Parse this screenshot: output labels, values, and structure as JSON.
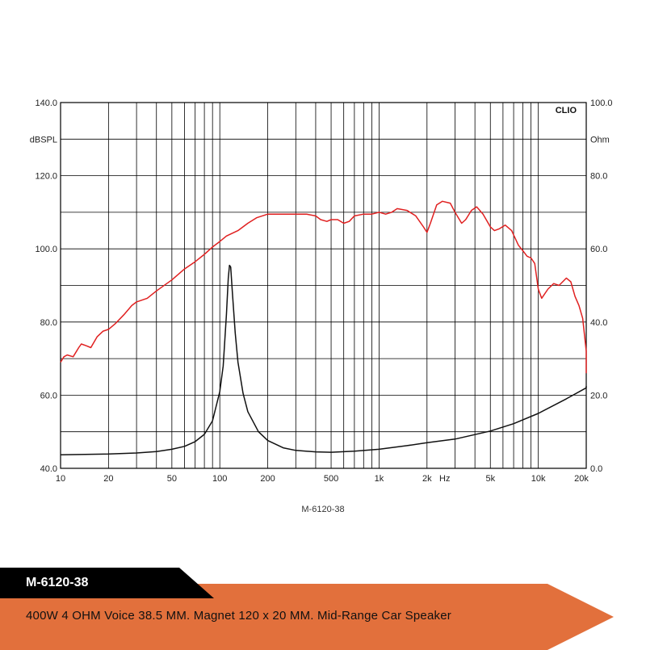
{
  "chart_data": {
    "type": "line",
    "brand": "CLIO",
    "x_scale": "log",
    "xlim": [
      10,
      20000
    ],
    "x_ticks": [
      {
        "value": 10,
        "label": "10"
      },
      {
        "value": 20,
        "label": "20"
      },
      {
        "value": 50,
        "label": "50"
      },
      {
        "value": 100,
        "label": "100"
      },
      {
        "value": 200,
        "label": "200"
      },
      {
        "value": 500,
        "label": "500"
      },
      {
        "value": 1000,
        "label": "1k"
      },
      {
        "value": 2000,
        "label": "2k"
      },
      {
        "value": 5000,
        "label": "5k"
      },
      {
        "value": 10000,
        "label": "10k"
      },
      {
        "value": 20000,
        "label": "20k"
      }
    ],
    "x_unit_label": "Hz",
    "y_left": {
      "unit": "dBSPL",
      "ylim": [
        40,
        140
      ],
      "ticks": [
        "40.0",
        "60.0",
        "80.0",
        "100.0",
        "120.0",
        "140.0"
      ]
    },
    "y_right": {
      "unit": "Ohm",
      "ylim": [
        0,
        100
      ],
      "ticks": [
        "0.0",
        "20.0",
        "40.0",
        "60.0",
        "80.0",
        "100.0"
      ]
    },
    "grid": true,
    "caption": "M-6120-38",
    "series": [
      {
        "axis": "left",
        "color": "#e02020",
        "points": [
          [
            10,
            69
          ],
          [
            10.5,
            70.5
          ],
          [
            11,
            71
          ],
          [
            12,
            70.5
          ],
          [
            13,
            73
          ],
          [
            13.5,
            74
          ],
          [
            14.5,
            73.5
          ],
          [
            15.5,
            73
          ],
          [
            17,
            76
          ],
          [
            18.5,
            77.5
          ],
          [
            20,
            78
          ],
          [
            22,
            79.5
          ],
          [
            25,
            82
          ],
          [
            28,
            84.5
          ],
          [
            30,
            85.5
          ],
          [
            35,
            86.5
          ],
          [
            40,
            88.5
          ],
          [
            50,
            91.5
          ],
          [
            60,
            94.5
          ],
          [
            70,
            96.5
          ],
          [
            80,
            98.5
          ],
          [
            90,
            100.5
          ],
          [
            100,
            102
          ],
          [
            110,
            103.5
          ],
          [
            130,
            105
          ],
          [
            150,
            107
          ],
          [
            170,
            108.5
          ],
          [
            200,
            109.5
          ],
          [
            250,
            109.5
          ],
          [
            300,
            109.5
          ],
          [
            350,
            109.5
          ],
          [
            400,
            109
          ],
          [
            430,
            108
          ],
          [
            470,
            107.5
          ],
          [
            500,
            108
          ],
          [
            550,
            108
          ],
          [
            600,
            107
          ],
          [
            650,
            107.5
          ],
          [
            700,
            109
          ],
          [
            800,
            109.5
          ],
          [
            900,
            109.5
          ],
          [
            1000,
            110
          ],
          [
            1100,
            109.5
          ],
          [
            1200,
            110
          ],
          [
            1300,
            111
          ],
          [
            1500,
            110.5
          ],
          [
            1700,
            109
          ],
          [
            1900,
            106
          ],
          [
            2000,
            104.5
          ],
          [
            2100,
            107
          ],
          [
            2300,
            112
          ],
          [
            2500,
            113
          ],
          [
            2800,
            112.5
          ],
          [
            3000,
            110
          ],
          [
            3300,
            107
          ],
          [
            3500,
            108
          ],
          [
            3800,
            110.5
          ],
          [
            4100,
            111.5
          ],
          [
            4500,
            109.5
          ],
          [
            5000,
            106
          ],
          [
            5300,
            105
          ],
          [
            5700,
            105.5
          ],
          [
            6200,
            106.5
          ],
          [
            6800,
            105
          ],
          [
            7500,
            101
          ],
          [
            8000,
            99.5
          ],
          [
            8500,
            98
          ],
          [
            9000,
            97.5
          ],
          [
            9500,
            96
          ],
          [
            10000,
            89
          ],
          [
            10500,
            86.5
          ],
          [
            11500,
            89
          ],
          [
            12500,
            90.5
          ],
          [
            13500,
            90
          ],
          [
            15000,
            92
          ],
          [
            16000,
            91
          ],
          [
            17000,
            87
          ],
          [
            18000,
            84.5
          ],
          [
            19000,
            81
          ],
          [
            20000,
            72
          ],
          [
            21000,
            67.5
          ],
          [
            22000,
            66
          ]
        ]
      },
      {
        "axis": "right",
        "color": "#111111",
        "points": [
          [
            10,
            3.7
          ],
          [
            20,
            3.9
          ],
          [
            30,
            4.2
          ],
          [
            40,
            4.6
          ],
          [
            50,
            5.2
          ],
          [
            60,
            6
          ],
          [
            70,
            7.3
          ],
          [
            80,
            9.3
          ],
          [
            90,
            13
          ],
          [
            100,
            21
          ],
          [
            105,
            28
          ],
          [
            110,
            42
          ],
          [
            113,
            52
          ],
          [
            115,
            55.5
          ],
          [
            117,
            55
          ],
          [
            120,
            48
          ],
          [
            125,
            37
          ],
          [
            130,
            29
          ],
          [
            140,
            20.5
          ],
          [
            150,
            15.5
          ],
          [
            175,
            10
          ],
          [
            200,
            7.6
          ],
          [
            250,
            5.6
          ],
          [
            300,
            4.9
          ],
          [
            400,
            4.5
          ],
          [
            500,
            4.4
          ],
          [
            700,
            4.7
          ],
          [
            1000,
            5.2
          ],
          [
            1500,
            6.2
          ],
          [
            2000,
            7
          ],
          [
            3000,
            8
          ],
          [
            5000,
            10.2
          ],
          [
            7000,
            12.2
          ],
          [
            10000,
            15
          ],
          [
            15000,
            19
          ],
          [
            20000,
            22
          ],
          [
            22000,
            22.5
          ]
        ]
      }
    ]
  },
  "model_bar": {
    "label": "M-6120-38",
    "color": "#000000"
  },
  "description_bar": {
    "text": "400W 4 OHM Voice 38.5 MM. Magnet 120 x 20 MM. Mid-Range Car Speaker",
    "color": "#e2703c"
  }
}
